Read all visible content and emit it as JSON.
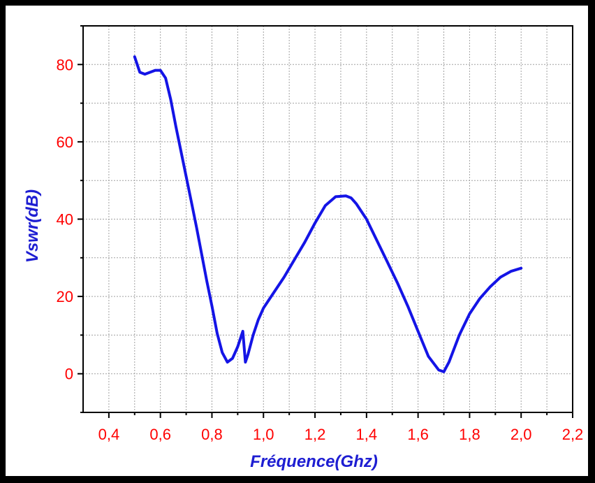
{
  "colors": {
    "line": "#1414e6",
    "tick_labels": "#ff0000",
    "axis_titles": "#1e1ed2",
    "grid": "#a0a0a0",
    "axes": "#000000",
    "frame": "#000000"
  },
  "chart_data": {
    "type": "line",
    "title": "",
    "xlabel": "Fréquence(Ghz)",
    "ylabel": "Vswr(dB)",
    "xlim": [
      0.3,
      2.2
    ],
    "ylim": [
      -10,
      90
    ],
    "grid": true,
    "legend": "none",
    "x_ticks": [
      {
        "value": 0.4,
        "label": "0,4"
      },
      {
        "value": 0.6,
        "label": "0,6"
      },
      {
        "value": 0.8,
        "label": "0,8"
      },
      {
        "value": 1.0,
        "label": "1,0"
      },
      {
        "value": 1.2,
        "label": "1,2"
      },
      {
        "value": 1.4,
        "label": "1,4"
      },
      {
        "value": 1.6,
        "label": "1,6"
      },
      {
        "value": 1.8,
        "label": "1,8"
      },
      {
        "value": 2.0,
        "label": "2,0"
      },
      {
        "value": 2.2,
        "label": "2,2"
      }
    ],
    "y_ticks": [
      {
        "value": 0,
        "label": "0"
      },
      {
        "value": 20,
        "label": "20"
      },
      {
        "value": 40,
        "label": "40"
      },
      {
        "value": 60,
        "label": "60"
      },
      {
        "value": 80,
        "label": "80"
      }
    ],
    "series": [
      {
        "x": [
          0.5,
          0.52,
          0.54,
          0.56,
          0.58,
          0.6,
          0.62,
          0.64,
          0.66,
          0.68,
          0.7,
          0.72,
          0.74,
          0.76,
          0.78,
          0.8,
          0.82,
          0.84,
          0.86,
          0.88,
          0.9,
          0.92,
          0.93,
          0.94,
          0.96,
          0.98,
          1.0,
          1.04,
          1.08,
          1.12,
          1.16,
          1.2,
          1.24,
          1.28,
          1.32,
          1.34,
          1.36,
          1.4,
          1.44,
          1.48,
          1.52,
          1.56,
          1.6,
          1.64,
          1.68,
          1.7,
          1.72,
          1.76,
          1.8,
          1.84,
          1.88,
          1.92,
          1.96,
          2.0
        ],
        "y": [
          82,
          78,
          77.5,
          78,
          78.5,
          78.5,
          76.5,
          71,
          64,
          57.5,
          51,
          44.5,
          38,
          31,
          24,
          17.5,
          10.5,
          5.5,
          3,
          4,
          7,
          11,
          3,
          5,
          10,
          14,
          17,
          21,
          25,
          29.5,
          34,
          39,
          43.5,
          45.8,
          46,
          45.5,
          44,
          40,
          34.5,
          29,
          23.5,
          17.5,
          11,
          4.5,
          1,
          0.5,
          3,
          10,
          15.5,
          19.5,
          22.5,
          25,
          26.5,
          27.3
        ]
      }
    ]
  }
}
